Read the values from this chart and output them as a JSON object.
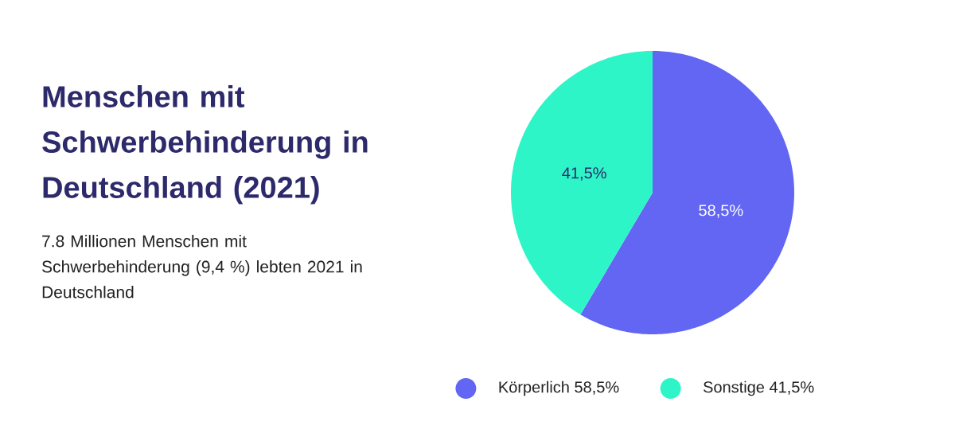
{
  "chart_data": {
    "type": "pie",
    "title": "Menschen mit Schwerbehinderung in Deutschland (2021)",
    "subtitle": "7.8 Millionen Menschen mit Schwerbehinderung (9,4 %) lebten 2021 in Deutschland",
    "categories": [
      "Körperlich",
      "Sonstige"
    ],
    "values": [
      58.5,
      41.5
    ],
    "value_labels": [
      "58,5%",
      "41,5%"
    ],
    "colors": [
      "#6366f2",
      "#2ef5c8"
    ],
    "legend": "bottom"
  }
}
